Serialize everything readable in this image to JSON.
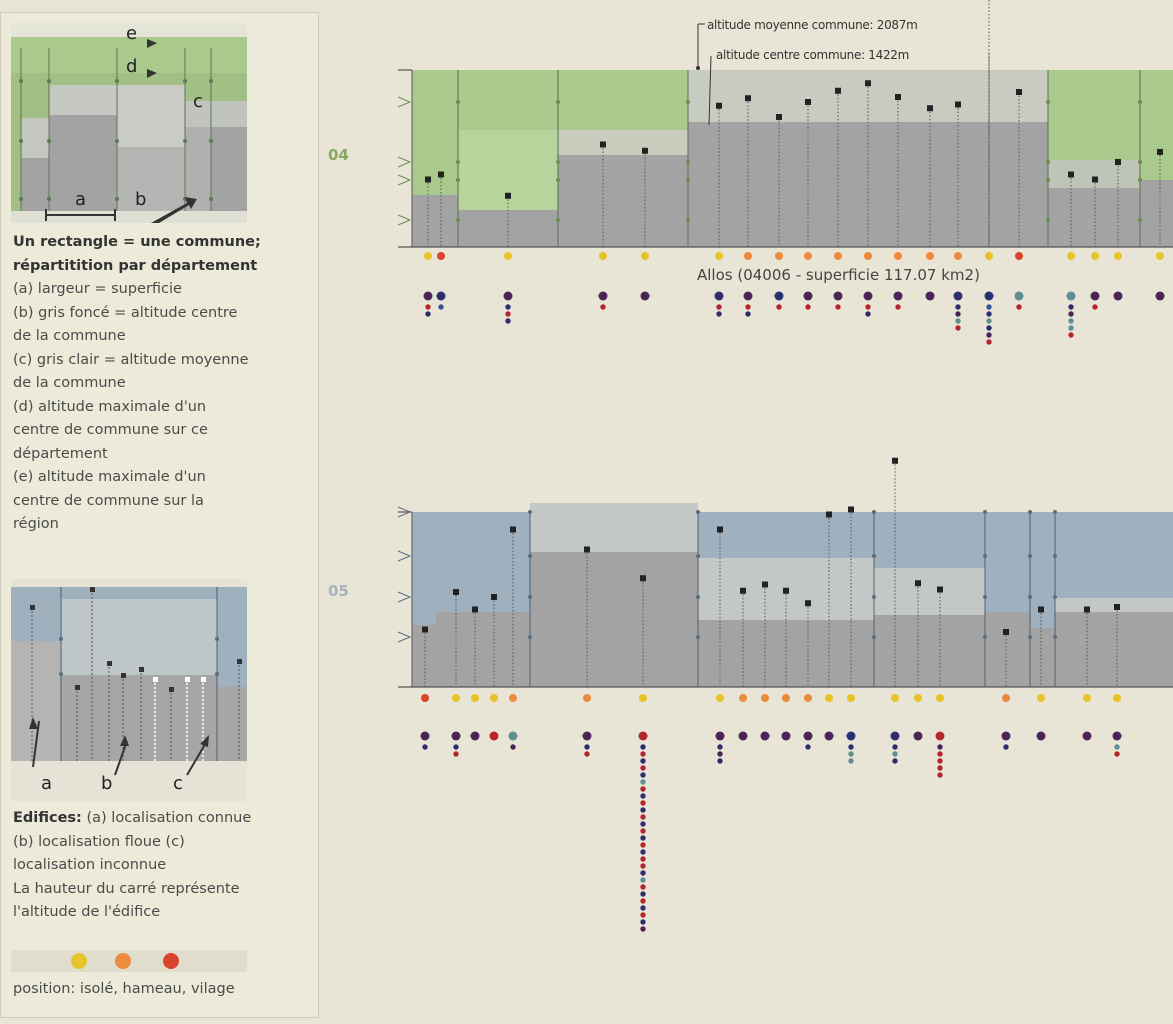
{
  "legend": {
    "diagram1": {
      "letter_a": "a",
      "letter_b": "b",
      "letter_c": "c",
      "letter_d": "d",
      "letter_e": "e"
    },
    "text1": {
      "line1": "Un rectangle = une commune;",
      "line2": "répartitition par département",
      "line3": "(a) largeur = superficie",
      "line4": "(b) gris foncé = altitude centre",
      "line5": "de la commune",
      "line6": "(c) gris clair = altitude moyenne",
      "line7": "de la commune",
      "line8": "(d) altitude maximale d'un",
      "line9": "centre de commune sur ce",
      "line10": "département",
      "line11": "(e) altitude maximale d'un",
      "line12": "centre de commune sur la",
      "line13": "région"
    },
    "diagram2": {
      "letter_a": "a",
      "letter_b": "b",
      "letter_c": "c"
    },
    "text2": {
      "title": "Edifices:",
      "line1_rest": "(a) localisation connue",
      "line2": "(b) localisation floue (c)",
      "line3": "localisation inconnue",
      "line4": "La hauteur du carré représente",
      "line5": "l'altitude de l'édifice"
    },
    "position_caption": "position: isolé, hameau, vilage",
    "position_colors": {
      "isole": "#e6c42a",
      "hameau": "#ee8a3e",
      "village": "#d9442c"
    }
  },
  "annotations": {
    "avg_altitude": "altitude moyenne commune: 2087m",
    "center_altitude": "altitude centre commune: 1422m",
    "hover": "Allos (04006 - superficie 117.07 km2)"
  },
  "colors": {
    "dept04": "#a9c98d",
    "dept05": "#9fb0be",
    "dept04_label": "#8aa762",
    "dept05_label": "#a6b3bd",
    "dark_gray": "#a3a3a3",
    "light_gray": "#c1c3bf",
    "dot_navy": "#2c2e70",
    "dot_purple": "#4b2456",
    "dot_teal": "#5f8e93",
    "dot_red": "#b3262c",
    "dot_blue": "#35529a"
  },
  "chart_data": [
    {
      "type": "bar",
      "department": "04",
      "communes": [
        {
          "center": 180,
          "avg": 220,
          "building": 270,
          "pos": "isole",
          "stack": [
            "purple",
            "red",
            "navy"
          ]
        },
        {
          "center": 180,
          "avg": 220,
          "building": 290,
          "pos": "village",
          "stack": [
            "navy",
            "blue"
          ]
        },
        {
          "center": 150,
          "avg": 150,
          "building": 205,
          "pos": "isole",
          "stack": [
            "purple",
            "navy",
            "red",
            "navy"
          ]
        },
        {
          "center": 380,
          "avg": 510,
          "building": 410,
          "pos": "isole",
          "stack": [
            "purple",
            "red"
          ]
        },
        {
          "center": 380,
          "avg": 510,
          "building": 385,
          "pos": "isole",
          "stack": [
            "purple"
          ]
        },
        {
          "center": 520,
          "avg": 570,
          "building": 565,
          "pos": "isole",
          "stack": [
            "navy",
            "red",
            "navy"
          ]
        },
        {
          "center": 520,
          "avg": 570,
          "building": 595,
          "pos": "hameau",
          "stack": [
            "purple",
            "red",
            "navy"
          ]
        },
        {
          "center": 520,
          "avg": 570,
          "building": 520,
          "pos": "hameau",
          "stack": [
            "navy",
            "red"
          ]
        },
        {
          "center": 520,
          "avg": 570,
          "building": 580,
          "pos": "hameau",
          "stack": [
            "purple",
            "red"
          ]
        },
        {
          "center": 520,
          "avg": 570,
          "building": 625,
          "pos": "hameau",
          "stack": [
            "purple",
            "red"
          ]
        },
        {
          "center": 520,
          "avg": 570,
          "building": 655,
          "pos": "hameau",
          "stack": [
            "purple",
            "red",
            "navy"
          ]
        },
        {
          "center": 520,
          "avg": 570,
          "building": 600,
          "pos": "hameau",
          "stack": [
            "purple",
            "red"
          ]
        },
        {
          "center": 520,
          "avg": 570,
          "building": 555,
          "pos": "hameau",
          "stack": [
            "purple"
          ]
        },
        {
          "center": 520,
          "avg": 570,
          "building": 570,
          "pos": "hameau",
          "stack": [
            "navy",
            "navy",
            "purple",
            "teal",
            "red"
          ]
        },
        {
          "center": 520,
          "avg": 570,
          "building": 1100,
          "pos": "isole",
          "stack": [
            "navy",
            "blue",
            "navy",
            "teal",
            "navy",
            "purple",
            "red"
          ]
        },
        {
          "center": 520,
          "avg": 570,
          "building": 620,
          "pos": "village",
          "stack": [
            "teal",
            "red"
          ]
        },
        {
          "center": 270,
          "avg": 500,
          "building": 290,
          "pos": "isole",
          "stack": [
            "teal",
            "navy",
            "purple",
            "teal",
            "teal",
            "red"
          ]
        },
        {
          "center": 270,
          "avg": 500,
          "building": 270,
          "pos": "isole",
          "stack": [
            "purple",
            "red"
          ]
        },
        {
          "center": 270,
          "avg": 500,
          "building": 340,
          "pos": "isole",
          "stack": [
            "purple"
          ]
        },
        {
          "center": 270,
          "avg": 500,
          "building": 380,
          "pos": "isole",
          "stack": [
            "purple"
          ]
        }
      ]
    },
    {
      "type": "bar",
      "department": "05",
      "communes": [
        {
          "center": 200,
          "avg": 300,
          "building": 230,
          "pos": "village",
          "stack": [
            "purple",
            "navy"
          ]
        },
        {
          "center": 300,
          "avg": 370,
          "building": 380,
          "pos": "isole",
          "stack": [
            "purple",
            "navy",
            "red"
          ]
        },
        {
          "center": 300,
          "avg": 370,
          "building": 310,
          "pos": "isole",
          "stack": [
            "purple"
          ]
        },
        {
          "center": 300,
          "avg": 370,
          "building": 360,
          "pos": "isole",
          "stack": [
            "red"
          ]
        },
        {
          "center": 560,
          "avg": 580,
          "building": 630,
          "pos": "hameau",
          "stack": [
            "teal",
            "purple"
          ]
        },
        {
          "center": 560,
          "avg": 580,
          "building": 550,
          "pos": "hameau",
          "stack": [
            "purple",
            "navy",
            "red"
          ]
        },
        {
          "center": 320,
          "avg": 510,
          "building": 435,
          "pos": "isole",
          "stack": [
            "red",
            "navy",
            "red",
            "navy",
            "red",
            "navy",
            "teal",
            "red",
            "navy",
            "red",
            "navy",
            "red",
            "navy",
            "red",
            "navy",
            "red",
            "navy",
            "red",
            "red",
            "navy",
            "teal",
            "red",
            "navy",
            "red",
            "navy",
            "red",
            "navy",
            "purple"
          ]
        },
        {
          "center": 320,
          "avg": 510,
          "building": 630,
          "pos": "isole",
          "stack": [
            "purple",
            "navy",
            "purple",
            "navy"
          ]
        },
        {
          "center": 320,
          "avg": 510,
          "building": 385,
          "pos": "hameau",
          "stack": [
            "purple"
          ]
        },
        {
          "center": 320,
          "avg": 510,
          "building": 410,
          "pos": "hameau",
          "stack": [
            "purple"
          ]
        },
        {
          "center": 320,
          "avg": 510,
          "building": 385,
          "pos": "hameau",
          "stack": [
            "purple"
          ]
        },
        {
          "center": 320,
          "avg": 510,
          "building": 335,
          "pos": "hameau",
          "stack": [
            "purple",
            "navy"
          ]
        },
        {
          "center": 320,
          "avg": 510,
          "building": 690,
          "pos": "isole",
          "stack": [
            "purple"
          ]
        },
        {
          "center": 330,
          "avg": 420,
          "building": 710,
          "pos": "isole",
          "stack": [
            "navy",
            "navy",
            "teal",
            "teal"
          ]
        },
        {
          "center": 330,
          "avg": 420,
          "building": 905,
          "pos": "isole",
          "stack": [
            "navy",
            "navy",
            "teal",
            "navy"
          ]
        },
        {
          "center": 330,
          "avg": 420,
          "building": 415,
          "pos": "isole",
          "stack": [
            "purple"
          ]
        },
        {
          "center": 330,
          "avg": 420,
          "building": 390,
          "pos": "isole",
          "stack": [
            "red",
            "purple",
            "red",
            "red",
            "red",
            "red"
          ]
        },
        {
          "center": 210,
          "avg": 250,
          "building": 220,
          "pos": "hameau",
          "stack": [
            "purple",
            "navy"
          ]
        },
        {
          "center": 300,
          "avg": 340,
          "building": 310,
          "pos": "isole",
          "stack": [
            "purple"
          ]
        },
        {
          "center": 300,
          "avg": 340,
          "building": 310,
          "pos": "isole",
          "stack": [
            "purple"
          ]
        },
        {
          "center": 300,
          "avg": 340,
          "building": 320,
          "pos": "isole",
          "stack": [
            "purple",
            "teal",
            "red"
          ]
        }
      ]
    }
  ]
}
